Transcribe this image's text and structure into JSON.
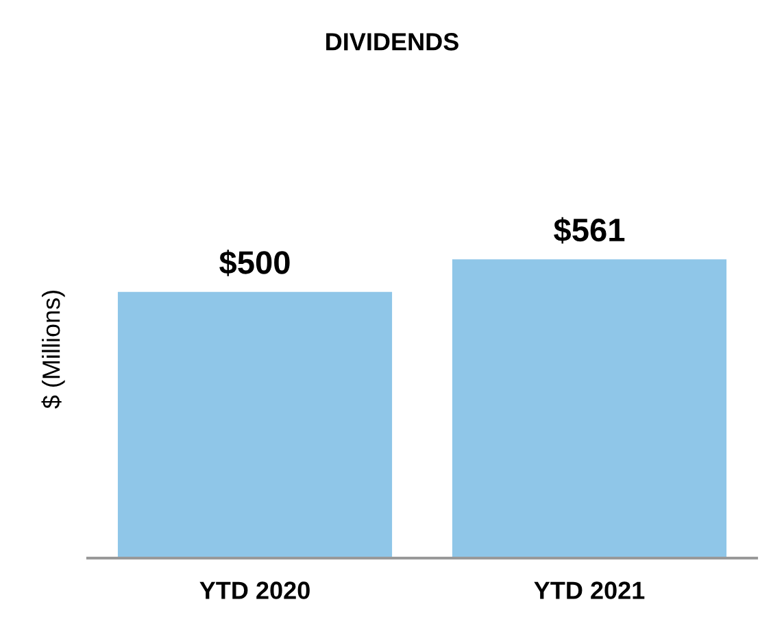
{
  "chart_data": {
    "type": "bar",
    "title": "DIVIDENDS",
    "ylabel": "$ (Millions)",
    "categories": [
      "YTD 2020",
      "YTD 2021"
    ],
    "values": [
      500,
      561
    ],
    "value_labels": [
      "$500",
      "$561"
    ],
    "color": "#8fc6e8",
    "grid": false,
    "legend": false
  }
}
